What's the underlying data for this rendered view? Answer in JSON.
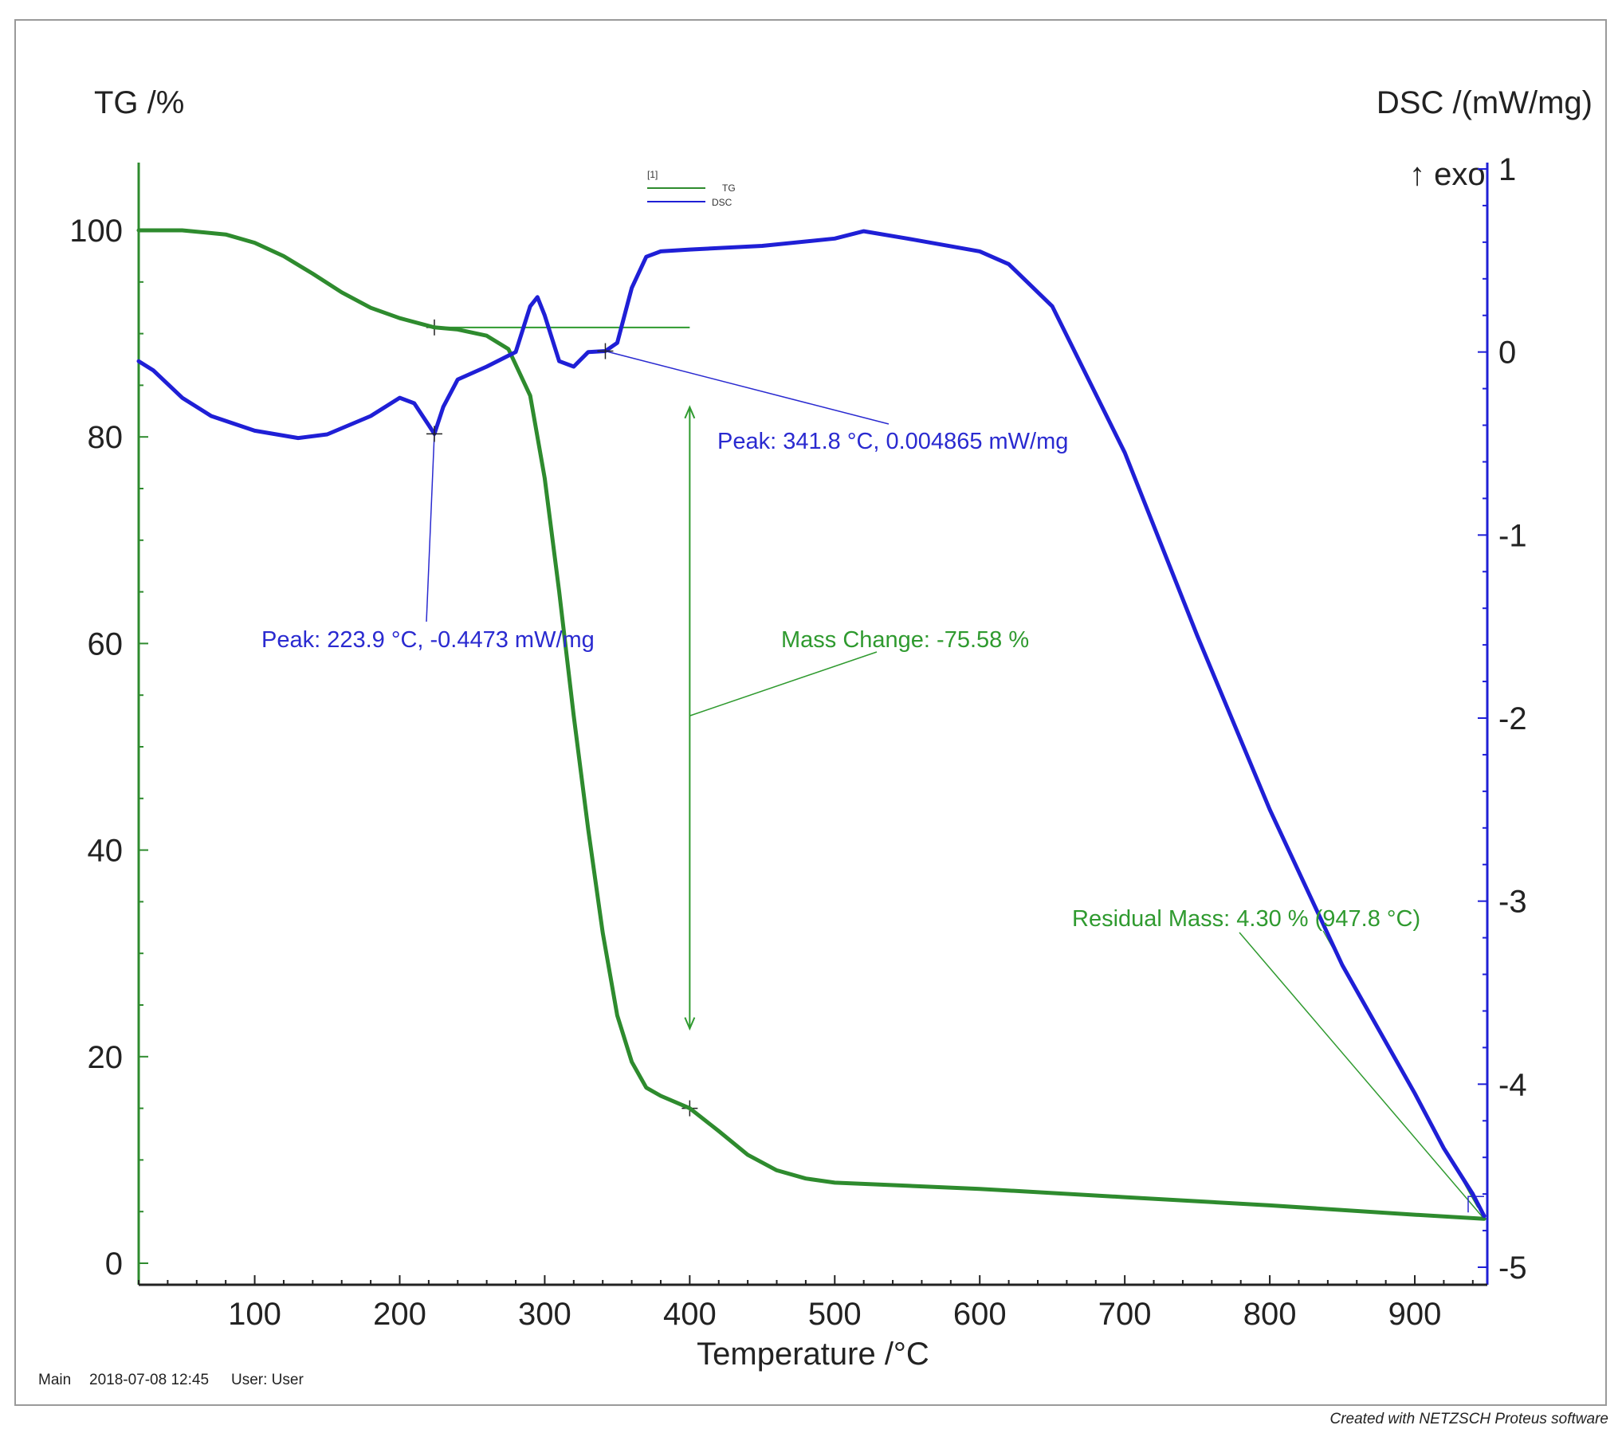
{
  "chart_data": {
    "type": "line",
    "title": "",
    "xlabel": "Temperature /°C",
    "ylabel_left": "TG /%",
    "ylabel_right": "DSC /(mW/mg)",
    "exo_label": "↑ exo",
    "xlim": [
      20,
      950
    ],
    "ylim_left": [
      0,
      106
    ],
    "ylim_right": [
      -5,
      1
    ],
    "x_ticks": [
      100,
      200,
      300,
      400,
      500,
      600,
      700,
      800,
      900
    ],
    "y_left_ticks": [
      0,
      20,
      40,
      60,
      80,
      100
    ],
    "y_right_ticks": [
      1,
      0,
      -1,
      -2,
      -3,
      -4,
      -5
    ],
    "legend": {
      "marker": "[1]",
      "entries": [
        "TG",
        "DSC"
      ],
      "placement": "top-center"
    },
    "colors": {
      "tg": "#2e8b2e",
      "dsc": "#1f1fd6",
      "ann_blue": "#2a2ad0",
      "ann_green": "#2f9a2f",
      "axis_left": "#2e8b2e",
      "axis_right": "#1f1fd6"
    },
    "series": [
      {
        "name": "TG",
        "axis": "left",
        "x": [
          20,
          50,
          80,
          100,
          120,
          140,
          160,
          180,
          200,
          223.9,
          240,
          260,
          275,
          290,
          300,
          310,
          320,
          330,
          340,
          350,
          360,
          370,
          380,
          400,
          420,
          440,
          460,
          480,
          500,
          550,
          600,
          700,
          800,
          900,
          947.8
        ],
        "y": [
          100,
          100,
          99.6,
          98.8,
          97.5,
          95.8,
          94,
          92.5,
          91.5,
          90.6,
          90.4,
          89.8,
          88.5,
          84,
          76,
          65,
          53,
          42,
          32,
          24,
          19.5,
          17,
          16.2,
          15,
          12.8,
          10.5,
          9,
          8.2,
          7.8,
          7.5,
          7.2,
          6.4,
          5.6,
          4.7,
          4.3
        ]
      },
      {
        "name": "DSC",
        "axis": "right",
        "x": [
          20,
          30,
          50,
          70,
          100,
          130,
          150,
          180,
          200,
          210,
          220,
          223.9,
          230,
          240,
          260,
          280,
          290,
          295,
          300,
          310,
          320,
          330,
          341.8,
          350,
          360,
          370,
          380,
          400,
          450,
          500,
          520,
          550,
          600,
          620,
          650,
          700,
          750,
          800,
          850,
          900,
          920,
          940,
          947.8
        ],
        "y": [
          -0.05,
          -0.1,
          -0.25,
          -0.35,
          -0.43,
          -0.47,
          -0.45,
          -0.35,
          -0.25,
          -0.28,
          -0.4,
          -0.4473,
          -0.3,
          -0.15,
          -0.08,
          0.0,
          0.25,
          0.3,
          0.2,
          -0.05,
          -0.08,
          0.0,
          0.004865,
          0.05,
          0.35,
          0.52,
          0.55,
          0.56,
          0.58,
          0.62,
          0.66,
          0.62,
          0.55,
          0.48,
          0.25,
          -0.55,
          -1.55,
          -2.5,
          -3.35,
          -4.05,
          -4.35,
          -4.6,
          -4.72
        ]
      }
    ],
    "annotations": {
      "peak1": "Peak: 223.9 °C, -0.4473 mW/mg",
      "peak2": "Peak: 341.8 °C, 0.004865 mW/mg",
      "mass_change": "Mass Change: -75.58 %",
      "residual": "Residual Mass: 4.30 % (947.8 °C)"
    },
    "annotation_points": {
      "peak1": {
        "x": 223.9,
        "y_dsc": -0.4473
      },
      "peak2": {
        "x": 341.8,
        "y_dsc": 0.004865
      },
      "mass_change": {
        "x": 400,
        "tg_top": 90.6,
        "tg_bottom": 15
      },
      "residual": {
        "x": 947.8,
        "tg": 4.3
      }
    }
  },
  "footer": {
    "segment": "Main",
    "datetime": "2018-07-08 12:45",
    "user": "User: User",
    "credit": "Created with NETZSCH Proteus software"
  }
}
